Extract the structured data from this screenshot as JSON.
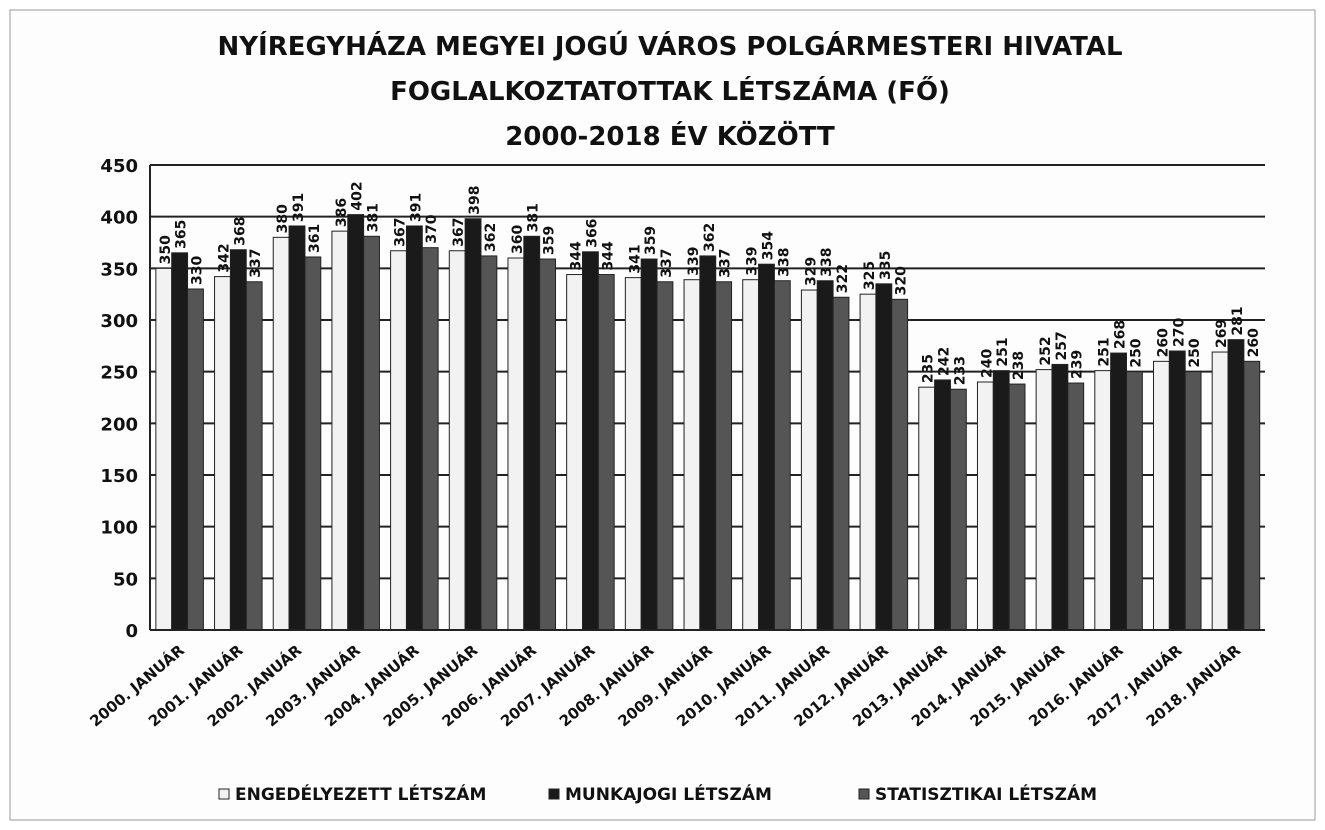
{
  "chart_data": {
    "type": "bar",
    "title": [
      "NYÍREGYHÁZA MEGYEI JOGÚ VÁROS POLGÁRMESTERI HIVATAL",
      "FOGLALKOZTATOTTAK LÉTSZÁMA (FŐ)",
      "2000-2018 ÉV KÖZÖTT"
    ],
    "categories": [
      "2000. JANUÁR",
      "2001. JANUÁR",
      "2002. JANUÁR",
      "2003. JANUÁR",
      "2004. JANUÁR",
      "2005. JANUÁR",
      "2006. JANUÁR",
      "2007. JANUÁR",
      "2008. JANUÁR",
      "2009. JANUÁR",
      "2010. JANUÁR",
      "2011. JANUÁR",
      "2012. JANUÁR",
      "2013. JANUÁR",
      "2014. JANUÁR",
      "2015. JANUÁR",
      "2016. JANUÁR",
      "2017. JANUÁR",
      "2018. JANUÁR"
    ],
    "series": [
      {
        "name": "ENGEDÉLYEZETT LÉTSZÁM",
        "color": "#f2f2f2",
        "values": [
          350,
          342,
          380,
          386,
          367,
          367,
          360,
          344,
          341,
          339,
          339,
          329,
          325,
          235,
          240,
          252,
          251,
          260,
          269
        ]
      },
      {
        "name": "MUNKAJOGI LÉTSZÁM",
        "color": "#1a1a1a",
        "values": [
          365,
          368,
          391,
          402,
          391,
          398,
          381,
          366,
          359,
          362,
          354,
          338,
          335,
          242,
          251,
          257,
          268,
          270,
          281
        ]
      },
      {
        "name": "STATISZTIKAI LÉTSZÁM",
        "color": "#555555",
        "values": [
          330,
          337,
          361,
          381,
          370,
          362,
          359,
          344,
          337,
          337,
          338,
          322,
          320,
          233,
          238,
          239,
          250,
          250,
          260
        ]
      }
    ],
    "ylim": [
      0,
      450
    ],
    "yticks": [
      0,
      50,
      100,
      150,
      200,
      250,
      300,
      350,
      400,
      450
    ],
    "grid": true
  }
}
